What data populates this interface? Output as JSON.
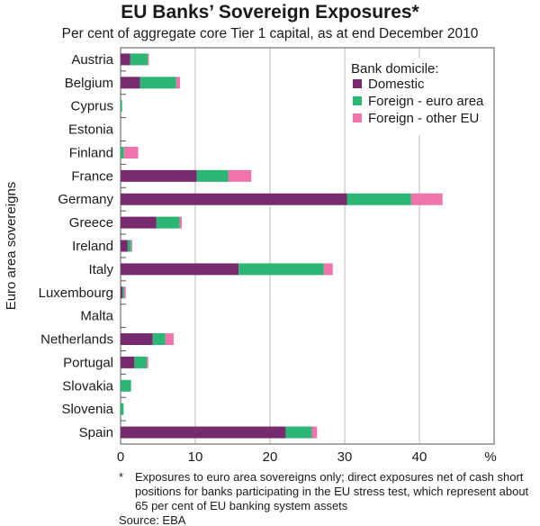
{
  "chart_data": {
    "type": "bar",
    "orientation": "horizontal",
    "stacked": true,
    "title": "EU Banks’ Sovereign Exposures*",
    "subtitle": "Per cent of aggregate core Tier 1 capital, as at end December 2010",
    "ylabel": "Euro area sovereigns",
    "xlabel": "%",
    "xlim": [
      0,
      50
    ],
    "xticks": [
      "0",
      "10",
      "20",
      "30",
      "40"
    ],
    "grid": true,
    "legend_title": "Bank domicile:",
    "legend_position": "top-right",
    "categories": [
      "Austria",
      "Belgium",
      "Cyprus",
      "Estonia",
      "Finland",
      "France",
      "Germany",
      "Greece",
      "Ireland",
      "Italy",
      "Luxembourg",
      "Malta",
      "Netherlands",
      "Portugal",
      "Slovakia",
      "Slovenia",
      "Spain"
    ],
    "series": [
      {
        "name": "Domestic",
        "color": "#772B6E",
        "values": [
          1.3,
          2.6,
          0,
          0,
          0,
          10.2,
          30.3,
          4.8,
          0.95,
          15.8,
          0.25,
          0.05,
          4.3,
          1.85,
          0,
          0,
          22.1
        ]
      },
      {
        "name": "Foreign - euro area",
        "color": "#2BB673",
        "values": [
          2.35,
          4.85,
          0.2,
          0,
          0.45,
          4.2,
          8.6,
          3.1,
          0.45,
          11.4,
          0.25,
          0,
          1.7,
          1.65,
          1.4,
          0.4,
          3.5
        ]
      },
      {
        "name": "Foreign - other EU",
        "color": "#F173AC",
        "values": [
          0.15,
          0.5,
          0,
          0,
          1.9,
          3.1,
          4.2,
          0.3,
          0.15,
          1.2,
          0.2,
          0,
          1.1,
          0.2,
          0,
          0,
          0.7
        ]
      }
    ]
  },
  "footnote": {
    "marker": "*",
    "text": "Exposures to euro area sovereigns only; direct exposures net of cash short positions for banks participating in the EU stress test, which represent about 65 per cent of EU banking system assets",
    "source": "Source: EBA"
  }
}
